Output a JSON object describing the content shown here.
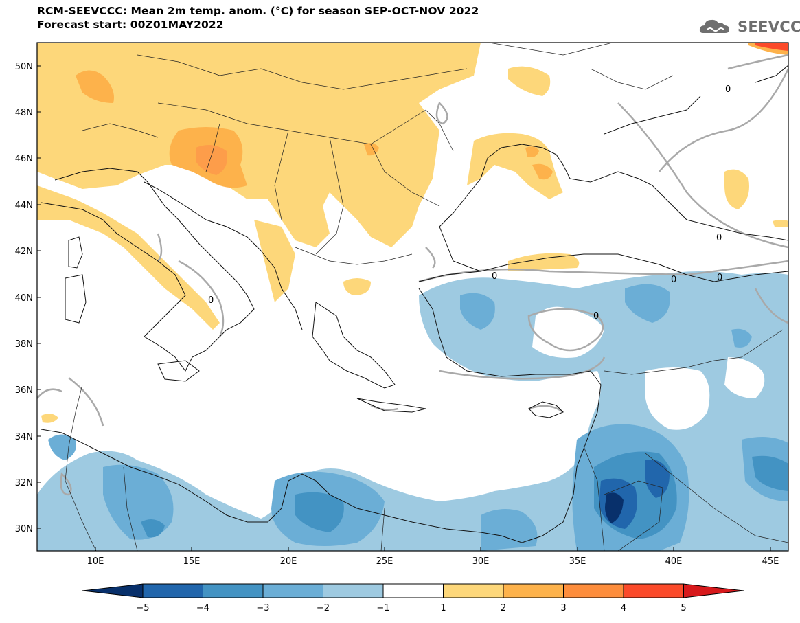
{
  "header": {
    "title_line1": "RCM-SEEVCCC: Mean 2m temp. anom. (°C) for season SEP-OCT-NOV 2022",
    "title_line2": "Forecast start: 00Z01MAY2022"
  },
  "logo": {
    "text": "SEEVCCC",
    "icon": "cloud-icon"
  },
  "map": {
    "lat_labels": [
      "50N",
      "48N",
      "46N",
      "44N",
      "42N",
      "40N",
      "38N",
      "36N",
      "34N",
      "32N",
      "30N"
    ],
    "lon_labels": [
      "10E",
      "15E",
      "20E",
      "25E",
      "30E",
      "35E",
      "40E",
      "45E"
    ],
    "contour_labels": [
      "0",
      "0",
      "0",
      "0",
      "0",
      "0",
      "0"
    ]
  },
  "colorbar": {
    "ticks": [
      "−5",
      "−4",
      "−3",
      "−2",
      "−1",
      "1",
      "2",
      "3",
      "4",
      "5"
    ],
    "colors": [
      "#08306b",
      "#2166ac",
      "#4393c3",
      "#6baed6",
      "#9ecae1",
      "#ffffff",
      "#fdd77a",
      "#fdb24b",
      "#fd8d3c",
      "#fb4a2a",
      "#d7191c"
    ]
  }
}
